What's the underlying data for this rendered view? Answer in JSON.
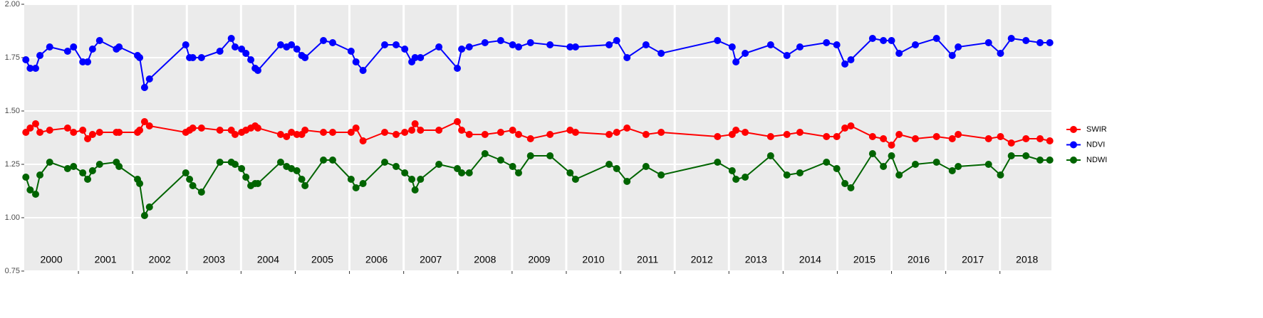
{
  "chart_data": {
    "type": "line",
    "x": [
      2000.03,
      2000.11,
      2000.21,
      2000.29,
      2000.47,
      2000.8,
      2000.91,
      2001.08,
      2001.17,
      2001.26,
      2001.39,
      2001.7,
      2001.75,
      2002.09,
      2002.13,
      2002.22,
      2002.31,
      2002.98,
      2003.05,
      2003.11,
      2003.27,
      2003.61,
      2003.82,
      2003.89,
      2004.01,
      2004.09,
      2004.18,
      2004.26,
      2004.31,
      2004.73,
      2004.84,
      2004.93,
      2005.03,
      2005.12,
      2005.18,
      2005.52,
      2005.69,
      2006.03,
      2006.12,
      2006.25,
      2006.65,
      2006.86,
      2007.02,
      2007.15,
      2007.21,
      2007.31,
      2007.65,
      2007.99,
      2008.07,
      2008.21,
      2008.5,
      2008.79,
      2009.01,
      2009.12,
      2009.34,
      2009.7,
      2010.07,
      2010.17,
      2010.79,
      2010.93,
      2011.12,
      2011.47,
      2011.75,
      2012.79,
      2013.06,
      2013.13,
      2013.3,
      2013.77,
      2014.07,
      2014.31,
      2014.8,
      2014.99,
      2015.14,
      2015.25,
      2015.65,
      2015.85,
      2016.0,
      2016.14,
      2016.44,
      2016.83,
      2017.12,
      2017.23,
      2017.79,
      2018.01,
      2018.21,
      2018.48,
      2018.74,
      2018.92
    ],
    "series": [
      {
        "name": "SWIR",
        "color": "#ff0000",
        "values": [
          1.4,
          1.42,
          1.44,
          1.4,
          1.41,
          1.42,
          1.4,
          1.41,
          1.37,
          1.39,
          1.4,
          1.4,
          1.4,
          1.4,
          1.41,
          1.45,
          1.43,
          1.4,
          1.41,
          1.42,
          1.42,
          1.41,
          1.41,
          1.39,
          1.4,
          1.41,
          1.42,
          1.43,
          1.42,
          1.39,
          1.38,
          1.4,
          1.39,
          1.39,
          1.41,
          1.4,
          1.4,
          1.4,
          1.42,
          1.36,
          1.4,
          1.39,
          1.4,
          1.41,
          1.44,
          1.41,
          1.41,
          1.45,
          1.41,
          1.39,
          1.39,
          1.4,
          1.41,
          1.39,
          1.37,
          1.39,
          1.41,
          1.4,
          1.39,
          1.4,
          1.42,
          1.39,
          1.4,
          1.38,
          1.39,
          1.41,
          1.4,
          1.38,
          1.39,
          1.4,
          1.38,
          1.38,
          1.42,
          1.43,
          1.38,
          1.37,
          1.34,
          1.39,
          1.37,
          1.38,
          1.37,
          1.39,
          1.37,
          1.38,
          1.35,
          1.37,
          1.37,
          1.36
        ]
      },
      {
        "name": "NDVI",
        "color": "#0000ff",
        "values": [
          1.74,
          1.7,
          1.7,
          1.76,
          1.8,
          1.78,
          1.8,
          1.73,
          1.73,
          1.79,
          1.83,
          1.79,
          1.8,
          1.76,
          1.75,
          1.61,
          1.65,
          1.81,
          1.75,
          1.75,
          1.75,
          1.78,
          1.84,
          1.8,
          1.79,
          1.77,
          1.74,
          1.7,
          1.69,
          1.81,
          1.8,
          1.81,
          1.79,
          1.76,
          1.75,
          1.83,
          1.82,
          1.78,
          1.73,
          1.69,
          1.81,
          1.81,
          1.79,
          1.73,
          1.75,
          1.75,
          1.8,
          1.7,
          1.79,
          1.8,
          1.82,
          1.83,
          1.81,
          1.8,
          1.82,
          1.81,
          1.8,
          1.8,
          1.81,
          1.83,
          1.75,
          1.81,
          1.77,
          1.83,
          1.8,
          1.73,
          1.77,
          1.81,
          1.76,
          1.8,
          1.82,
          1.81,
          1.72,
          1.74,
          1.84,
          1.83,
          1.83,
          1.77,
          1.81,
          1.84,
          1.76,
          1.8,
          1.82,
          1.77,
          1.84,
          1.83,
          1.82,
          1.82
        ]
      },
      {
        "name": "NDWI",
        "color": "#006400",
        "values": [
          1.19,
          1.13,
          1.11,
          1.2,
          1.26,
          1.23,
          1.24,
          1.21,
          1.18,
          1.22,
          1.25,
          1.26,
          1.24,
          1.18,
          1.16,
          1.01,
          1.05,
          1.21,
          1.18,
          1.15,
          1.12,
          1.26,
          1.26,
          1.25,
          1.23,
          1.19,
          1.15,
          1.16,
          1.16,
          1.26,
          1.24,
          1.23,
          1.22,
          1.18,
          1.15,
          1.27,
          1.27,
          1.18,
          1.14,
          1.16,
          1.26,
          1.24,
          1.21,
          1.18,
          1.13,
          1.18,
          1.25,
          1.23,
          1.21,
          1.21,
          1.3,
          1.27,
          1.24,
          1.21,
          1.29,
          1.29,
          1.21,
          1.18,
          1.25,
          1.23,
          1.17,
          1.24,
          1.2,
          1.26,
          1.22,
          1.18,
          1.19,
          1.29,
          1.2,
          1.21,
          1.26,
          1.23,
          1.16,
          1.14,
          1.3,
          1.24,
          1.29,
          1.2,
          1.25,
          1.26,
          1.22,
          1.24,
          1.25,
          1.2,
          1.29,
          1.29,
          1.27,
          1.27
        ]
      }
    ],
    "xlim": [
      2000,
      2018.95
    ],
    "xgrid": [
      2001,
      2002,
      2003,
      2004,
      2005,
      2006,
      2007,
      2008,
      2009,
      2010,
      2011,
      2012,
      2013,
      2014,
      2015,
      2016,
      2017,
      2018
    ],
    "xticks": [
      {
        "value": 2000.5,
        "label": "2000"
      },
      {
        "value": 2001.5,
        "label": "2001"
      },
      {
        "value": 2002.5,
        "label": "2002"
      },
      {
        "value": 2003.5,
        "label": "2003"
      },
      {
        "value": 2004.5,
        "label": "2004"
      },
      {
        "value": 2005.5,
        "label": "2005"
      },
      {
        "value": 2006.5,
        "label": "2006"
      },
      {
        "value": 2007.5,
        "label": "2007"
      },
      {
        "value": 2008.5,
        "label": "2008"
      },
      {
        "value": 2009.5,
        "label": "2009"
      },
      {
        "value": 2010.5,
        "label": "2010"
      },
      {
        "value": 2011.5,
        "label": "2011"
      },
      {
        "value": 2012.5,
        "label": "2012"
      },
      {
        "value": 2013.5,
        "label": "2013"
      },
      {
        "value": 2014.5,
        "label": "2014"
      },
      {
        "value": 2015.5,
        "label": "2015"
      },
      {
        "value": 2016.5,
        "label": "2016"
      },
      {
        "value": 2017.5,
        "label": "2017"
      },
      {
        "value": 2018.5,
        "label": "2018"
      }
    ],
    "ylim": [
      0.75,
      2.0
    ],
    "yticks": [
      {
        "value": 0.75,
        "label": "0.75"
      },
      {
        "value": 1.0,
        "label": "1.00"
      },
      {
        "value": 1.25,
        "label": "1.25"
      },
      {
        "value": 1.5,
        "label": "1.50"
      },
      {
        "value": 1.75,
        "label": "1.75"
      },
      {
        "value": 2.0,
        "label": "2.00"
      }
    ],
    "grid": true,
    "legend": "right"
  }
}
